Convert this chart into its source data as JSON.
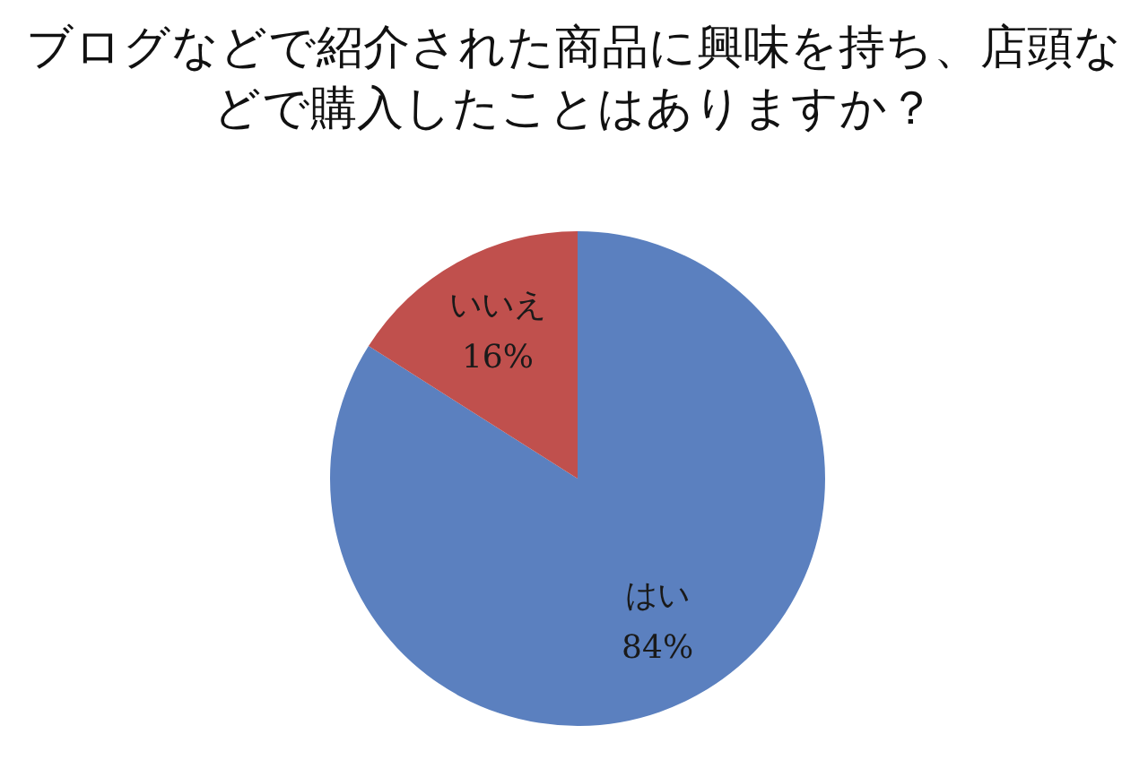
{
  "chart_data": {
    "type": "pie",
    "title": "ブログなどで紹介された商品に興味を持ち、店頭などで購入したことはありますか？",
    "categories": [
      "はい",
      "いいえ"
    ],
    "values": [
      84,
      16
    ],
    "colors": [
      "#5b80bf",
      "#c0504d"
    ],
    "value_labels": [
      "84%",
      "16%"
    ]
  }
}
